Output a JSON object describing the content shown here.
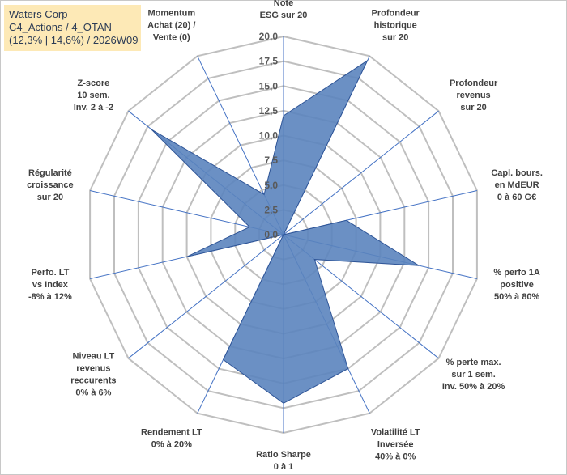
{
  "header": {
    "line1": "Waters Corp",
    "line2": "C4_Actions / 4_OTAN",
    "line3": "(12,3% | 14,6%) / 2026W09"
  },
  "colors": {
    "grid": "#bfbfbf",
    "spoke": "#4472c4",
    "series_fill": "#5b84be",
    "series_stroke": "#2f5597",
    "title_bg": "#fde9b6"
  },
  "chart_data": {
    "type": "radar",
    "title": "Waters Corp",
    "rmin": 0,
    "rmax": 20,
    "tick_values": [
      0,
      2.5,
      5,
      7.5,
      10,
      12.5,
      15,
      17.5,
      20
    ],
    "tick_labels": [
      "0,0",
      "2,5",
      "5,0",
      "7,5",
      "10,0",
      "12,5",
      "15,0",
      "17,5",
      "20,0"
    ],
    "axes": [
      {
        "lines": [
          "Note",
          "ESG sur 20"
        ],
        "anchor": "middle",
        "value": 12
      },
      {
        "lines": [
          "Profondeur",
          "historique",
          "sur 20"
        ],
        "anchor": "middle",
        "value": 19.5
      },
      {
        "lines": [
          "Profondeur",
          "revenus",
          "sur 20"
        ],
        "anchor": "middle",
        "value": 0
      },
      {
        "lines": [
          "Capl. bours.",
          "en MdEUR",
          "0 à 60 G€"
        ],
        "anchor": "middle",
        "value": 6.5
      },
      {
        "lines": [
          "% perfo 1A",
          "positive",
          "50% à 80%"
        ],
        "anchor": "middle",
        "value": 14
      },
      {
        "lines": [
          "% perte max.",
          "sur 1 sem.",
          "Inv. 50% à 20%"
        ],
        "anchor": "middle",
        "value": 4
      },
      {
        "lines": [
          "Volatilité LT",
          "Inversée",
          "40% à 0%"
        ],
        "anchor": "middle",
        "value": 15
      },
      {
        "lines": [
          "Ratio Sharpe",
          "0 à 1"
        ],
        "anchor": "middle",
        "value": 17
      },
      {
        "lines": [
          "Rendement LT",
          "0% à 20%"
        ],
        "anchor": "middle",
        "value": 14
      },
      {
        "lines": [
          "Niveau LT",
          "revenus",
          "reccurents",
          "0% à 6%"
        ],
        "anchor": "middle",
        "value": 0
      },
      {
        "lines": [
          "Perfo. LT",
          "vs Index",
          "-8% à 12%"
        ],
        "anchor": "middle",
        "value": 10
      },
      {
        "lines": [
          "Régularité",
          "croissance",
          "sur 20"
        ],
        "anchor": "middle",
        "value": 3.5
      },
      {
        "lines": [
          "Z-score",
          "10 sem.",
          "Inv. 2 à -2"
        ],
        "anchor": "middle",
        "value": 17
      },
      {
        "lines": [
          "Momentum",
          "Achat (20) /",
          "Vente (0)"
        ],
        "anchor": "middle",
        "value": 4.5
      }
    ]
  }
}
